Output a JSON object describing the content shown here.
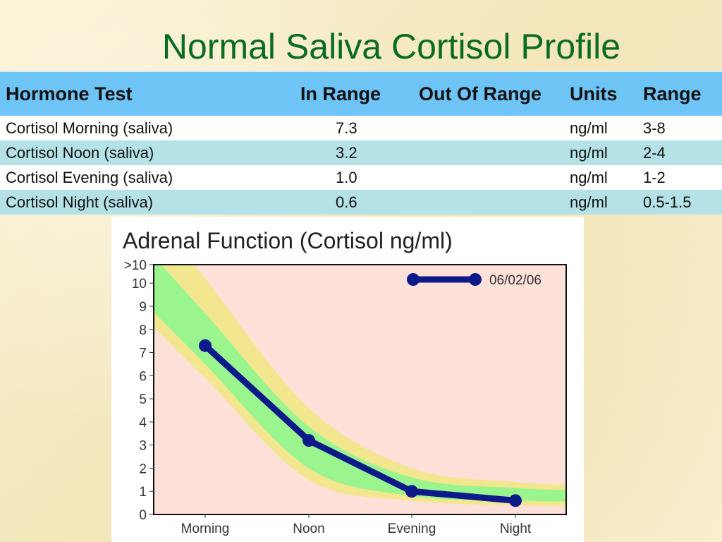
{
  "slide": {
    "title": "Normal Saliva Cortisol Profile"
  },
  "table": {
    "headers": [
      "Hormone Test",
      "In Range",
      "Out Of Range",
      "Units",
      "Range"
    ],
    "rows": [
      [
        "Cortisol Morning (saliva)",
        "7.3",
        "",
        "ng/ml",
        "3-8"
      ],
      [
        "Cortisol Noon (saliva)",
        "3.2",
        "",
        "ng/ml",
        "2-4"
      ],
      [
        "Cortisol Evening (saliva)",
        "1.0",
        "",
        "ng/ml",
        "1-2"
      ],
      [
        "Cortisol Night (saliva)",
        "0.6",
        "",
        "ng/ml",
        "0.5-1.5"
      ]
    ]
  },
  "chart_data": {
    "type": "line",
    "title": "Adrenal Function (Cortisol ng/ml)",
    "categories": [
      "Morning",
      "Noon",
      "Evening",
      "Night"
    ],
    "y_ticks": [
      "0",
      "1",
      "2",
      "3",
      "4",
      "5",
      "6",
      "7",
      "8",
      "9",
      "10",
      ">10"
    ],
    "ylim": [
      0,
      10.8
    ],
    "series": [
      {
        "name": "06/02/06",
        "values": [
          7.3,
          3.2,
          1.0,
          0.6
        ],
        "color": "#0d1a8a"
      }
    ],
    "bands": {
      "outer": {
        "color": "#f2e68e",
        "upper": [
          10.2,
          4.6,
          2.0,
          1.4
        ],
        "lower": [
          5.9,
          1.5,
          0.6,
          0.4
        ]
      },
      "inner": {
        "color": "#9af58f",
        "upper": [
          8.7,
          3.8,
          1.6,
          1.15
        ],
        "lower": [
          6.5,
          2.0,
          0.8,
          0.6
        ]
      }
    },
    "plot_background": "#fde0d8",
    "legend_position": "top-right",
    "grid": false
  }
}
